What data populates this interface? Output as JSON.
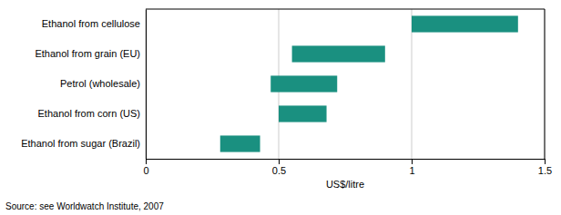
{
  "chart_data": {
    "type": "bar",
    "orientation": "horizontal",
    "categories": [
      "Ethanol from cellulose",
      "Ethanol from grain (EU)",
      "Petrol (wholesale)",
      "Ethanol from corn (US)",
      "Ethanol from sugar (Brazil)"
    ],
    "starts": [
      1.0,
      0.55,
      0.47,
      0.5,
      0.28
    ],
    "ends": [
      1.4,
      0.9,
      0.72,
      0.68,
      0.43
    ],
    "color": "#1a9080",
    "xlabel": "US$/litre",
    "xlim": [
      0,
      1.5
    ],
    "xticks": [
      0,
      0.5,
      1,
      1.5
    ],
    "grid": true,
    "annotation": "Source: see Worldwatch Institute, 2007"
  }
}
